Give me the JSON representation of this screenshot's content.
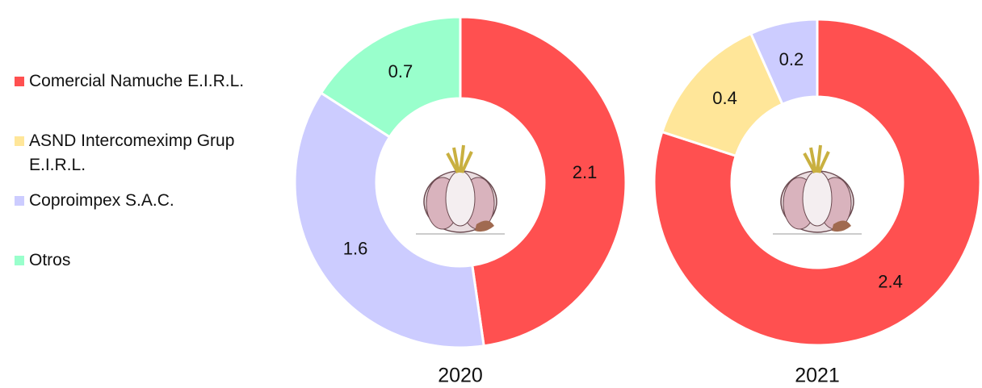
{
  "legend": {
    "categories": [
      "Comercial Namuche E.I.R.L.",
      "ASND Intercomeximp Grup E.I.R.L.",
      "Coproimpex S.A.C.",
      "Otros"
    ],
    "colors": [
      "#ff5050",
      "#ffe699",
      "#ccccff",
      "#99ffcc"
    ]
  },
  "chart_data": [
    {
      "type": "donut",
      "title": "2020",
      "values": [
        2.1,
        null,
        1.6,
        0.7
      ]
    },
    {
      "type": "donut",
      "title": "2021",
      "values": [
        2.4,
        0.4,
        0.2,
        null
      ]
    }
  ]
}
